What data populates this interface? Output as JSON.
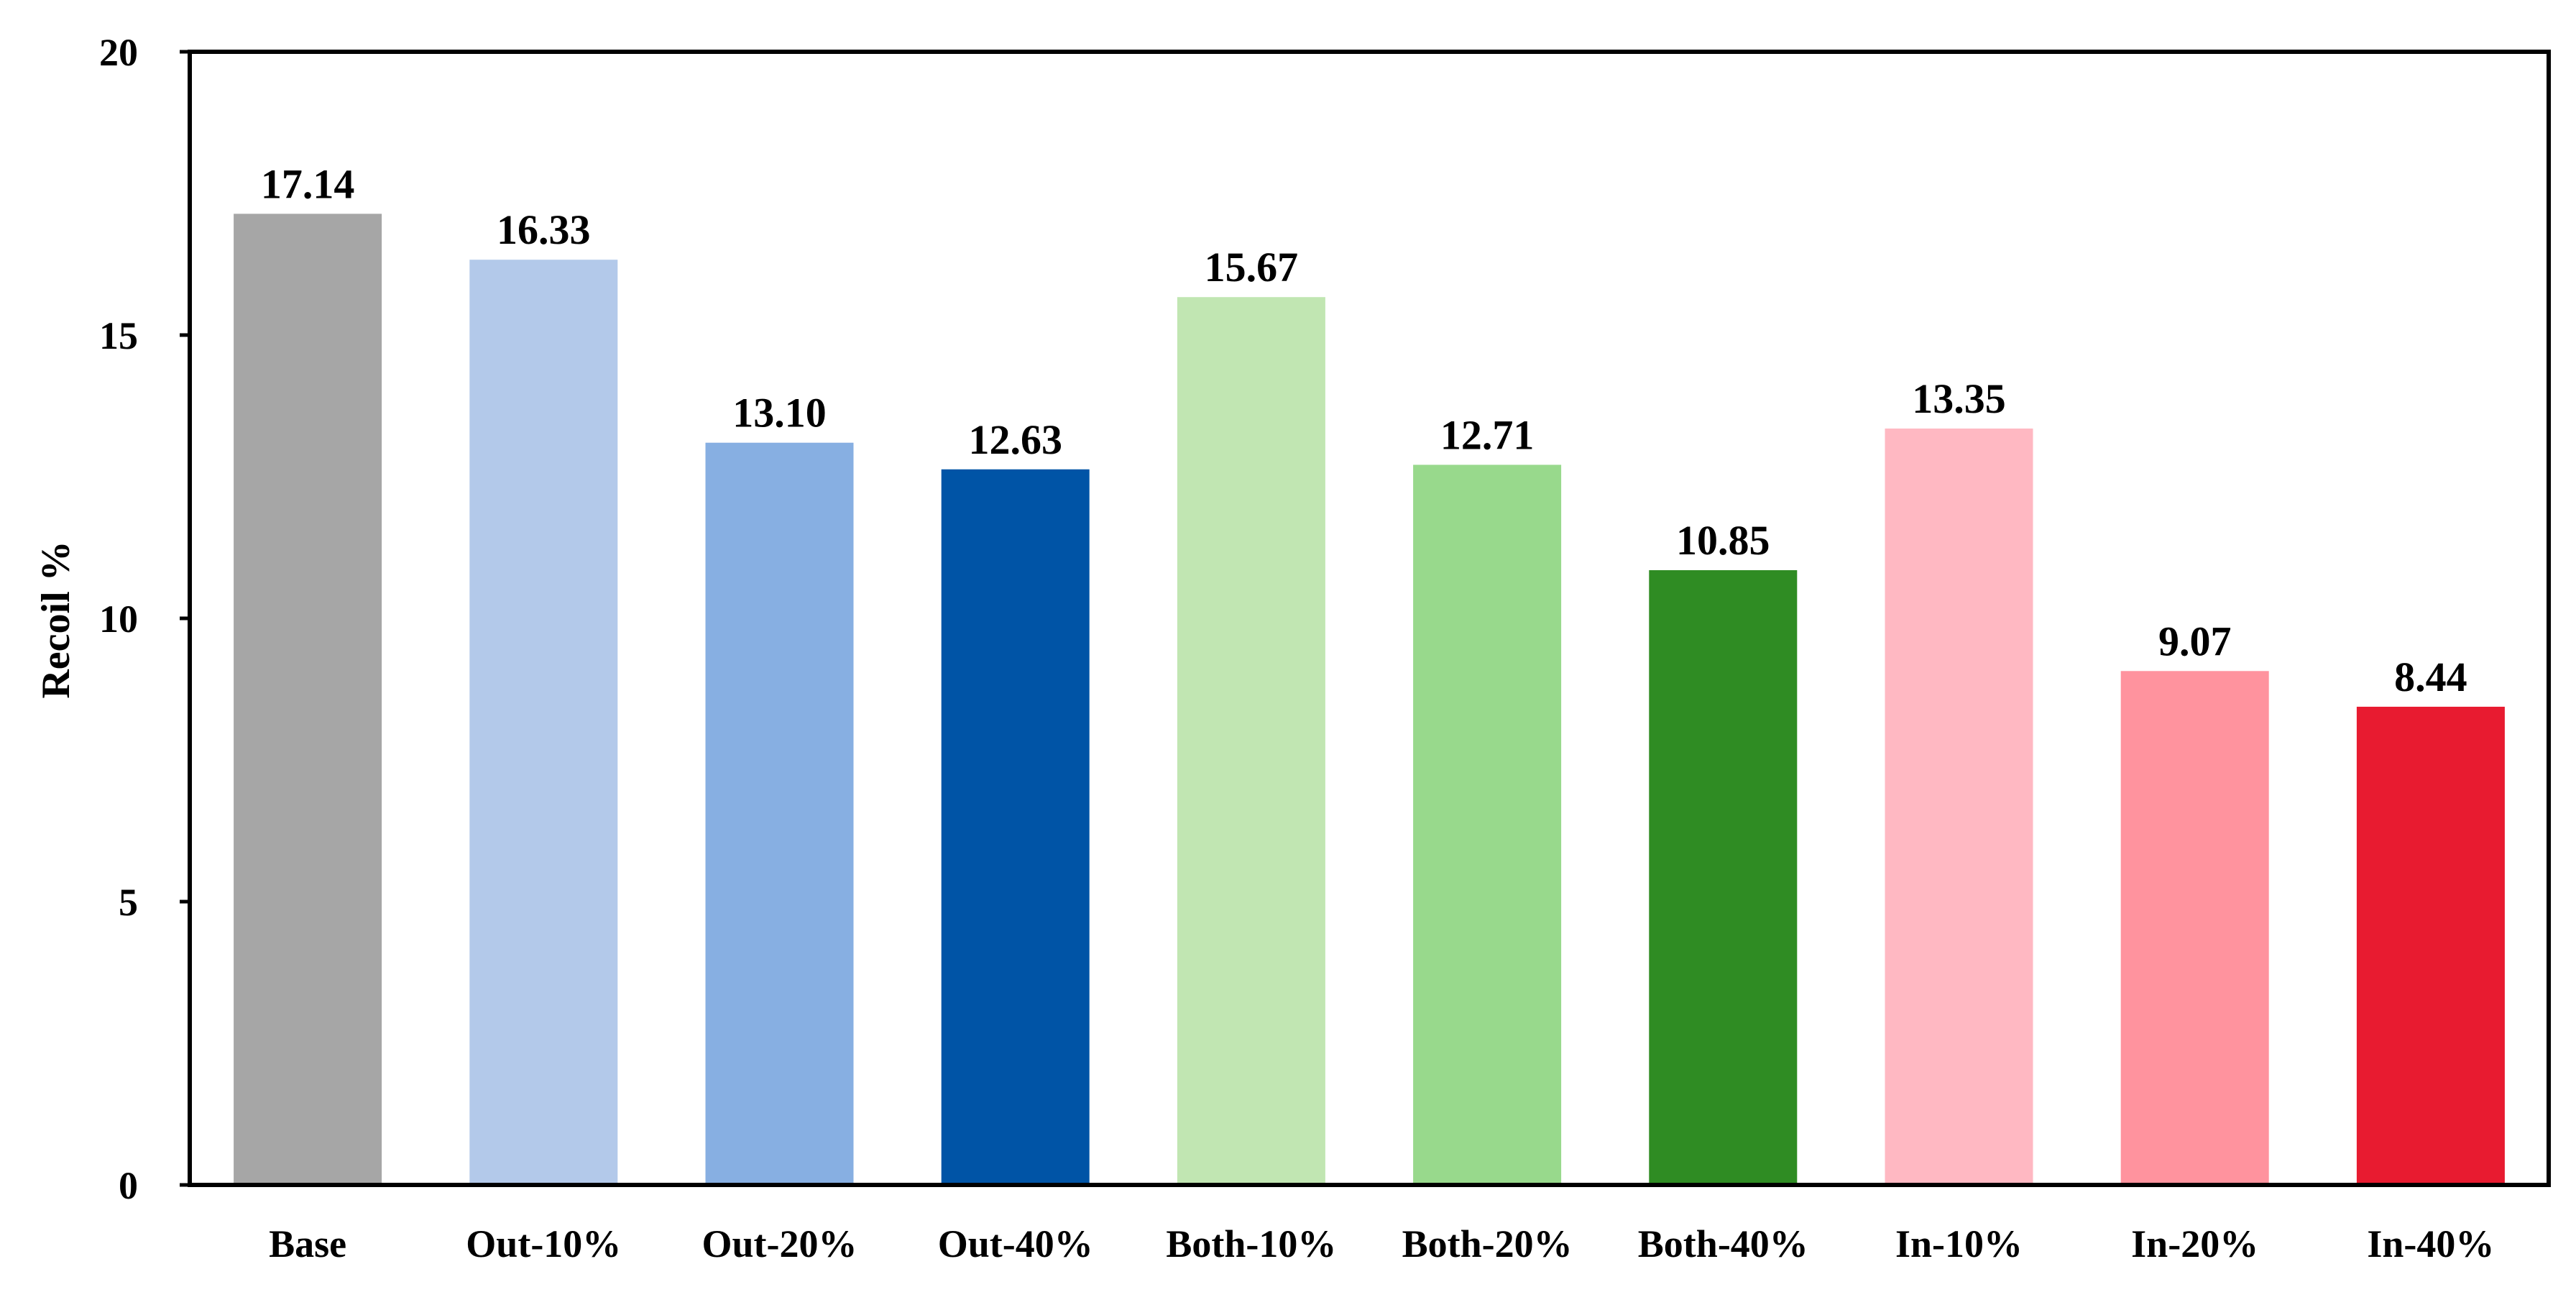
{
  "chart_data": {
    "type": "bar",
    "title": "",
    "xlabel": "",
    "ylabel": "Recoil %",
    "ylim": [
      0,
      20
    ],
    "yticks": [
      "0",
      "5",
      "10",
      "15",
      "20"
    ],
    "grid": false,
    "legend": "none",
    "categories": [
      "Base",
      "Out-10%",
      "Out-20%",
      "Out-40%",
      "Both-10%",
      "Both-20%",
      "Both-40%",
      "In-10%",
      "In-20%",
      "In-40%"
    ],
    "values": [
      17.14,
      16.33,
      13.1,
      12.63,
      15.67,
      12.71,
      10.85,
      13.35,
      9.07,
      8.44
    ],
    "value_labels": [
      "17.14",
      "16.33",
      "13.10",
      "12.63",
      "15.67",
      "12.71",
      "10.85",
      "13.35",
      "9.07",
      "8.44"
    ],
    "colors": [
      "#a6a6a6",
      "#b3c9ea",
      "#87afe2",
      "#0054a6",
      "#c1e6b2",
      "#98d98c",
      "#2f8c23",
      "#ffb8c2",
      "#ff939e",
      "#e81b30"
    ]
  }
}
